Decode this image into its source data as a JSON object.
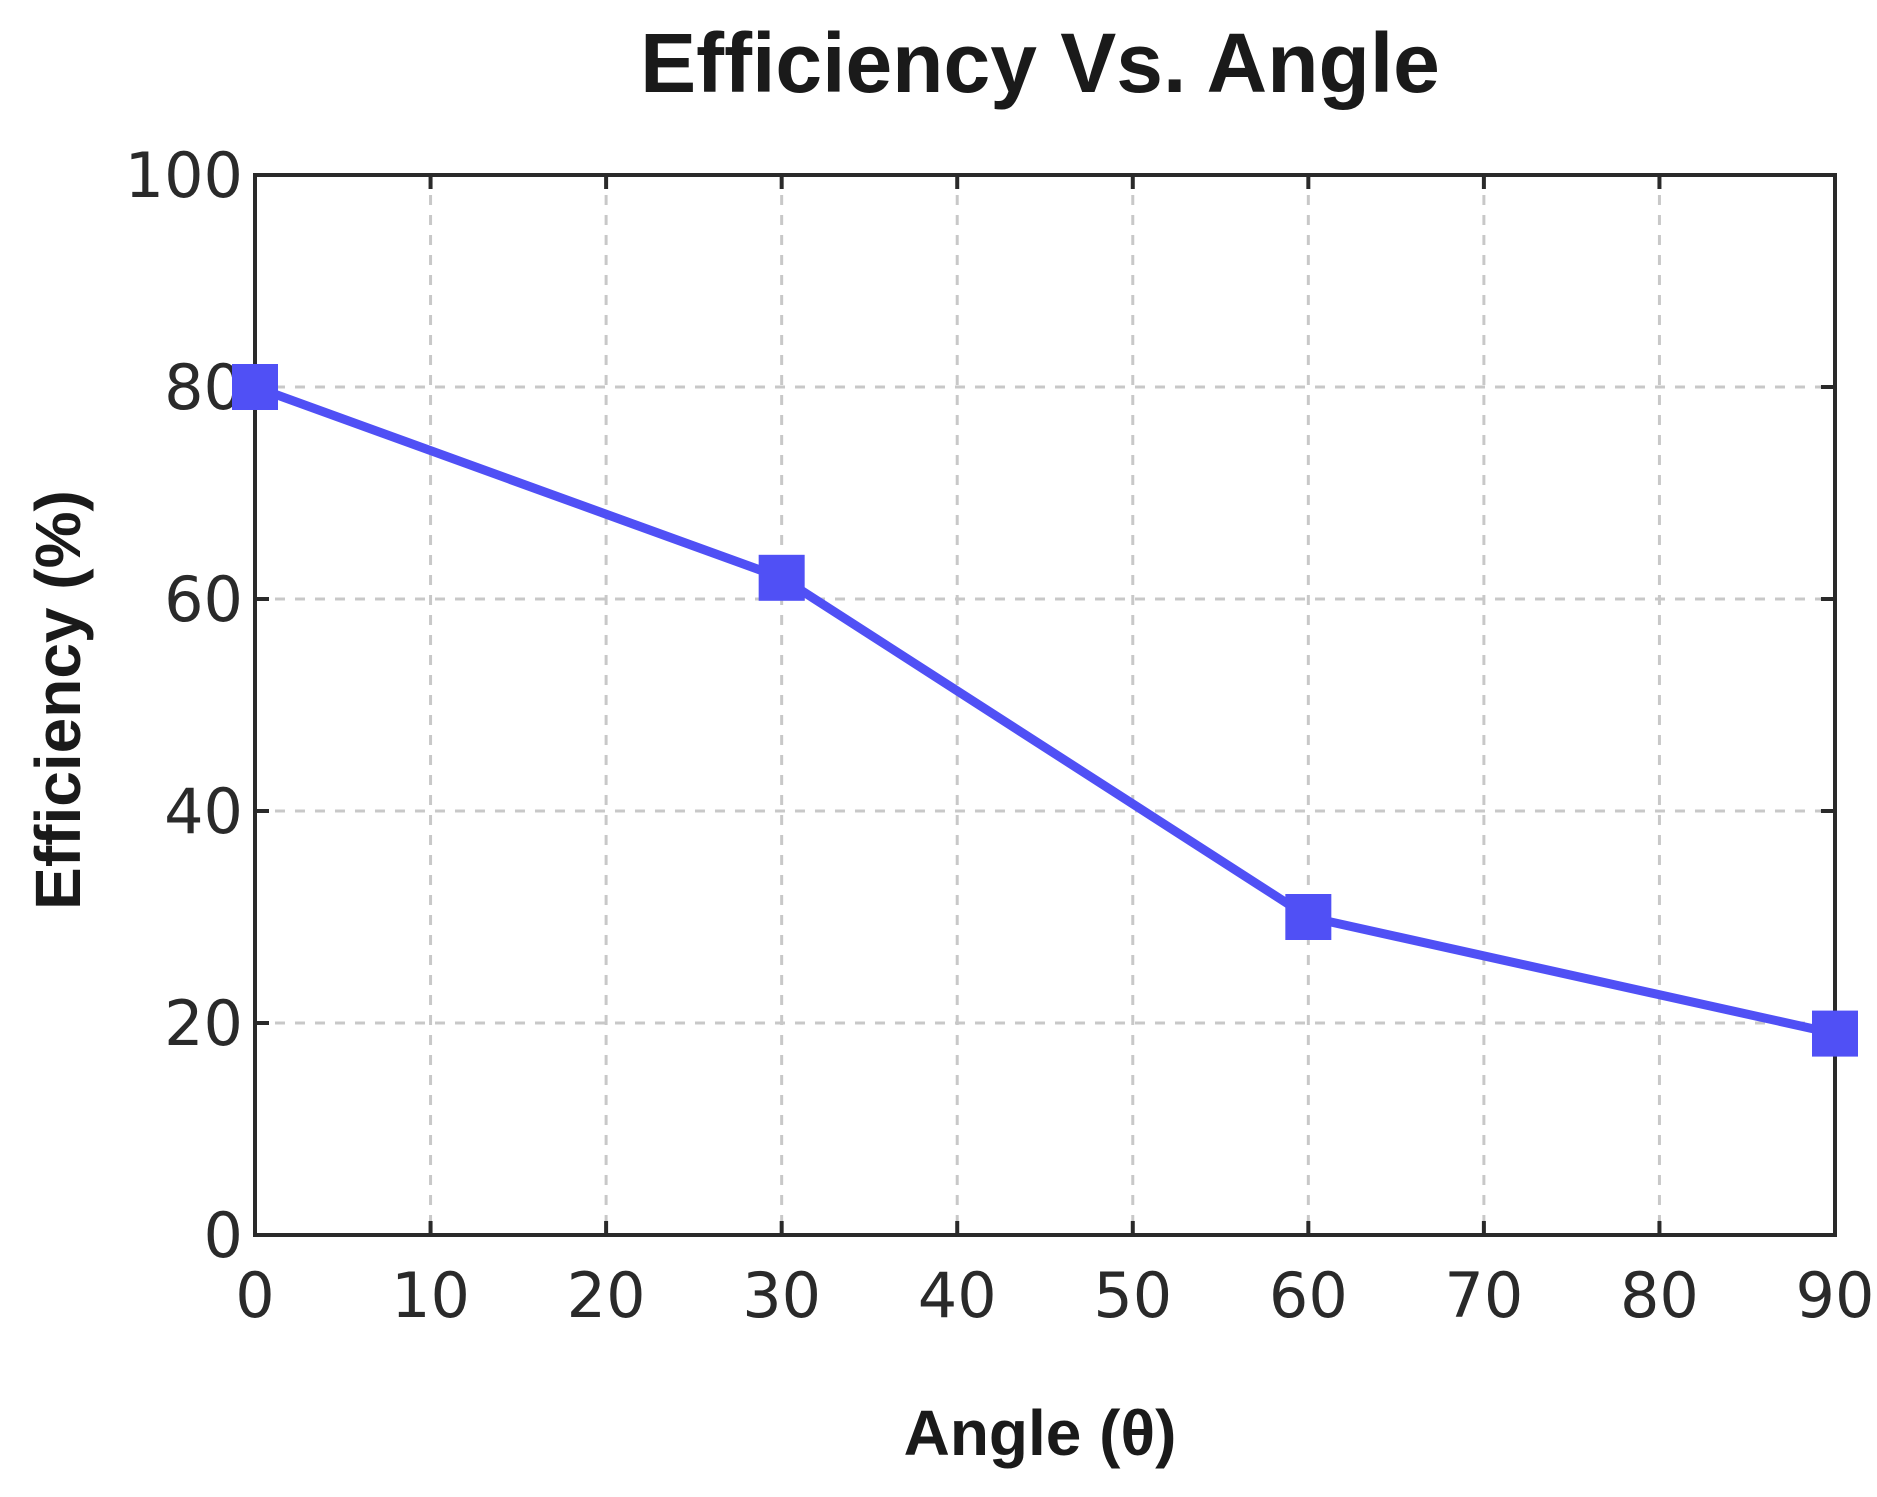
{
  "chart_data": {
    "type": "line",
    "title": "Efficiency Vs. Angle",
    "xlabel": "Angle (θ)",
    "ylabel": "Efficiency (%)",
    "xlim": [
      0,
      90
    ],
    "ylim": [
      0,
      100
    ],
    "xticks": [
      0,
      10,
      20,
      30,
      40,
      50,
      60,
      70,
      80,
      90
    ],
    "yticks": [
      0,
      20,
      40,
      60,
      80,
      100
    ],
    "grid": true,
    "series": [
      {
        "x": [
          0,
          30,
          60,
          90
        ],
        "y": [
          80,
          62,
          30,
          19
        ],
        "color": "#5050f5",
        "marker": "square"
      }
    ]
  }
}
